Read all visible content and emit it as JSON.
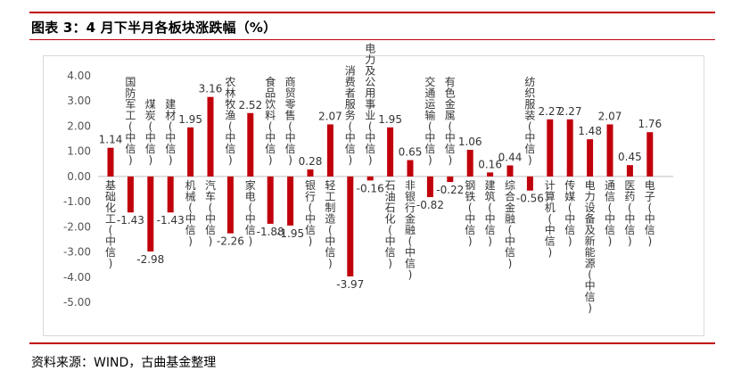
{
  "header": {
    "title": "图表 3：4 月下半月各板块涨跌幅（%）"
  },
  "footer": {
    "source": "资料来源：WIND，古曲基金整理"
  },
  "colors": {
    "bar": "#c0000b",
    "rule": "#c0000b"
  },
  "chart_data": {
    "type": "bar",
    "title": "4 月下半月各板块涨跌幅（%）",
    "xlabel": "",
    "ylabel": "",
    "ylim": [
      -5,
      4
    ],
    "yticks": [
      "4.00",
      "3.00",
      "2.00",
      "1.00",
      "0.00",
      "-1.00",
      "-2.00",
      "-3.00",
      "-4.00",
      "-5.00"
    ],
    "ytick_values": [
      4,
      3,
      2,
      1,
      0,
      -1,
      -2,
      -3,
      -4,
      -5
    ],
    "categories": [
      "基础化工(中信)",
      "国防军工(中信)",
      "煤炭(中信)",
      "建材(中信)",
      "机械(中信)",
      "汽车(中信)",
      "农林牧渔(中信)",
      "家电(中信)",
      "食品饮料(中信)",
      "商贸零售(中信)",
      "银行(中信)",
      "轻工制造(中信)",
      "消费者服务(中信)",
      "电力及公用事业(中信)",
      "石油石化(中信)",
      "非银行金融(中信)",
      "交通运输(中信)",
      "有色金属(中信)",
      "钢铁(中信)",
      "建筑(中信)",
      "综合金融(中信)",
      "纺织服装(中信)",
      "计算机(中信)",
      "传媒(中信)",
      "电力设备及新能源(中信)",
      "通信(中信)",
      "医药(中信)",
      "电子(中信)"
    ],
    "values": [
      1.14,
      -1.43,
      -2.98,
      -1.43,
      1.95,
      3.16,
      -2.26,
      2.52,
      -1.88,
      -1.95,
      0.28,
      2.07,
      -3.97,
      -0.16,
      1.95,
      0.65,
      -0.82,
      -0.22,
      1.06,
      0.16,
      0.44,
      -0.56,
      2.27,
      2.27,
      1.48,
      2.07,
      0.45,
      1.76
    ],
    "value_labels": [
      "1.14",
      "-1.43",
      "-2.98",
      "-1.43",
      "1.95",
      "3.16",
      "-2.26",
      "2.52",
      "-1.88",
      "-1.95",
      "0.28",
      "2.07",
      "-3.97",
      "-0.16",
      "1.95",
      "0.65",
      "-0.82",
      "-0.22",
      "1.06",
      "0.16",
      "0.44",
      "-0.56",
      "2.27",
      "2.27",
      "1.48",
      "2.07",
      "0.45",
      "1.76"
    ],
    "legend": "none",
    "grid": false
  }
}
